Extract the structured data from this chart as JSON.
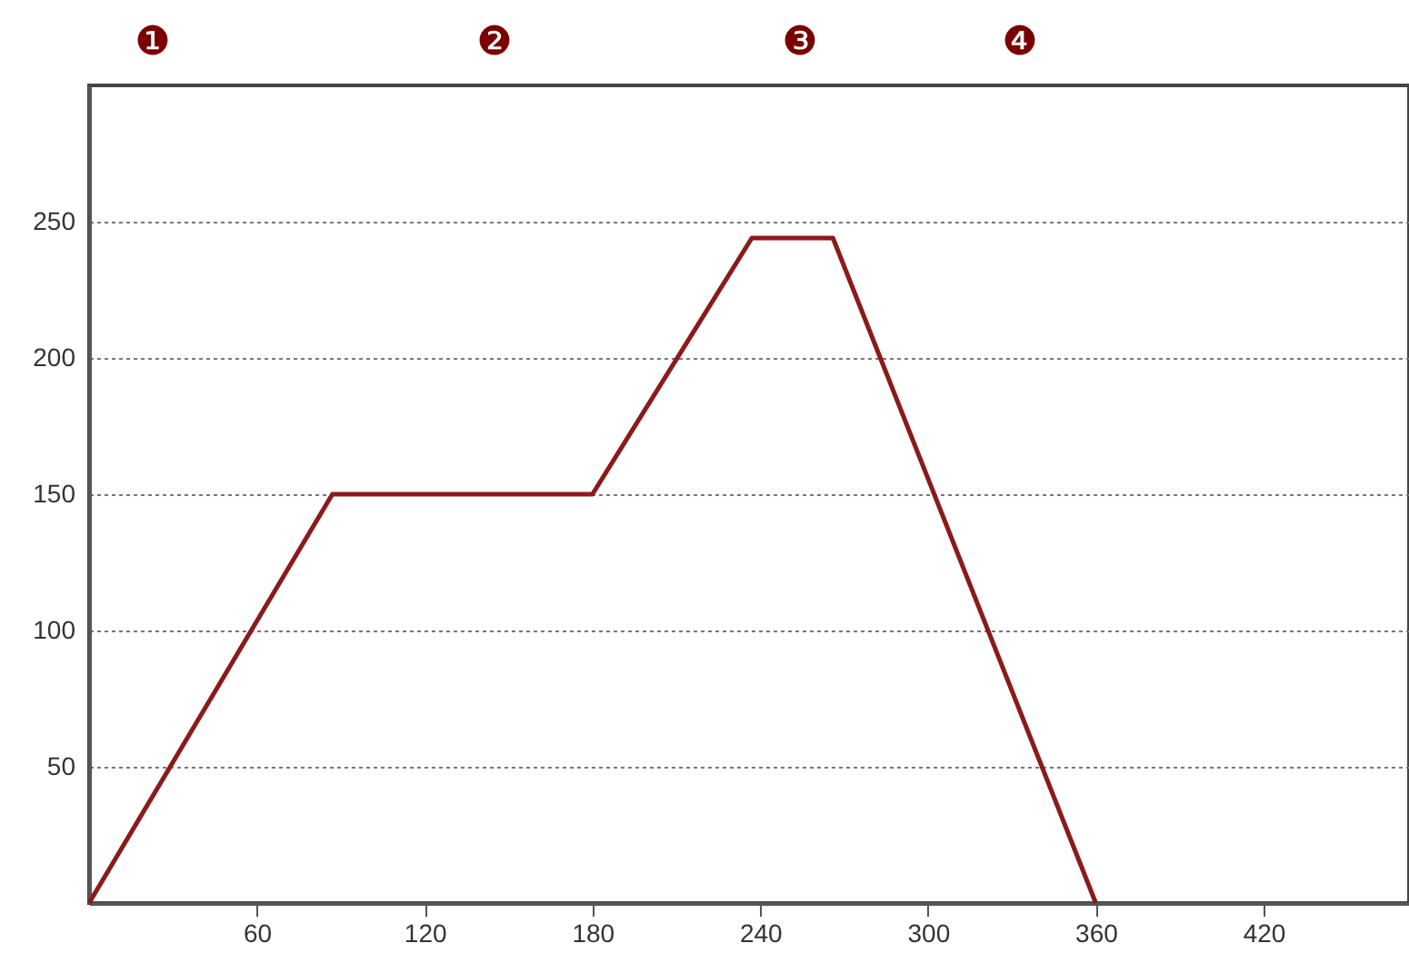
{
  "chart_data": {
    "type": "line",
    "x": [
      0,
      87,
      180,
      237,
      266,
      360
    ],
    "series": [
      {
        "color": "#8b1a1a",
        "values": [
          0,
          150,
          150,
          244,
          244,
          0
        ]
      }
    ],
    "xlim": [
      0,
      472
    ],
    "ylim": [
      0,
      300
    ],
    "xticks": [
      60,
      120,
      180,
      240,
      300,
      360,
      420
    ],
    "yticks": [
      50,
      100,
      150,
      200,
      250
    ],
    "grid": "y",
    "line_style": "solid",
    "annotations": [
      "❶",
      "❷",
      "❸",
      "❹"
    ]
  }
}
